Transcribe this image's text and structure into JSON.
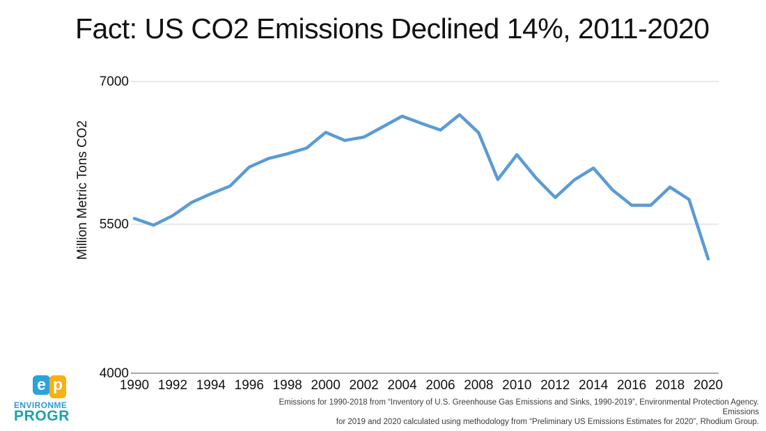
{
  "title": "Fact: US CO2 Emissions Declined 14%, 2011-2020",
  "chart_data": {
    "type": "line",
    "title": "Fact: US CO2 Emissions Declined 14%, 2011-2020",
    "xlabel": "",
    "ylabel": "Million Metric Tons CO2",
    "ylim": [
      4000,
      7000
    ],
    "yticks": [
      4000,
      5500,
      7000
    ],
    "xtick_labels": [
      "1990",
      "1992",
      "1994",
      "1996",
      "1998",
      "2000",
      "2002",
      "2004",
      "2006",
      "2008",
      "2010",
      "2012",
      "2014",
      "2016",
      "2018",
      "2020"
    ],
    "grid": "horizontal gridlines at 5500 and 7000, solid axis at 4000",
    "legend": "none",
    "line_color": "#5B9BD5",
    "x": [
      1990,
      1991,
      1992,
      1993,
      1994,
      1995,
      1996,
      1997,
      1998,
      1999,
      2000,
      2001,
      2002,
      2003,
      2004,
      2005,
      2006,
      2007,
      2008,
      2009,
      2010,
      2011,
      2012,
      2013,
      2014,
      2015,
      2016,
      2017,
      2018,
      2019,
      2020
    ],
    "series": [
      {
        "name": "US CO2 emissions (million metric tons)",
        "values": [
          5560,
          5490,
          5590,
          5730,
          5820,
          5900,
          6100,
          6190,
          6240,
          6300,
          6465,
          6380,
          6415,
          6525,
          6635,
          6560,
          6490,
          6650,
          6460,
          5970,
          6230,
          5985,
          5780,
          5965,
          6090,
          5860,
          5700,
          5700,
          5890,
          5760,
          5150
        ]
      }
    ]
  },
  "footer": {
    "source_lines": [
      "Emissions for 1990-2018 from “Inventory of U.S. Greenhouse Gas Emissions and Sinks, 1990-2019”, Environmental Protection Agency. Emissions",
      "for 2019 and 2020 calculated using methodology from “Preliminary US Emissions Estimates for 2020”, Rhodium Group."
    ]
  },
  "logo": {
    "mark_e": "e",
    "mark_p": "p",
    "line1": "ENVIRONME",
    "line2": "PROGR",
    "colors": {
      "e_block": "#2AA3DC",
      "p_block": "#F8B012",
      "line1_text": "#2B9CD1",
      "line2_text": "#1BA0B2"
    }
  },
  "colors": {
    "line": "#5B9BD5",
    "gridline": "#E8E8E8",
    "axis": "#A6A6A6",
    "text": "#111111"
  }
}
